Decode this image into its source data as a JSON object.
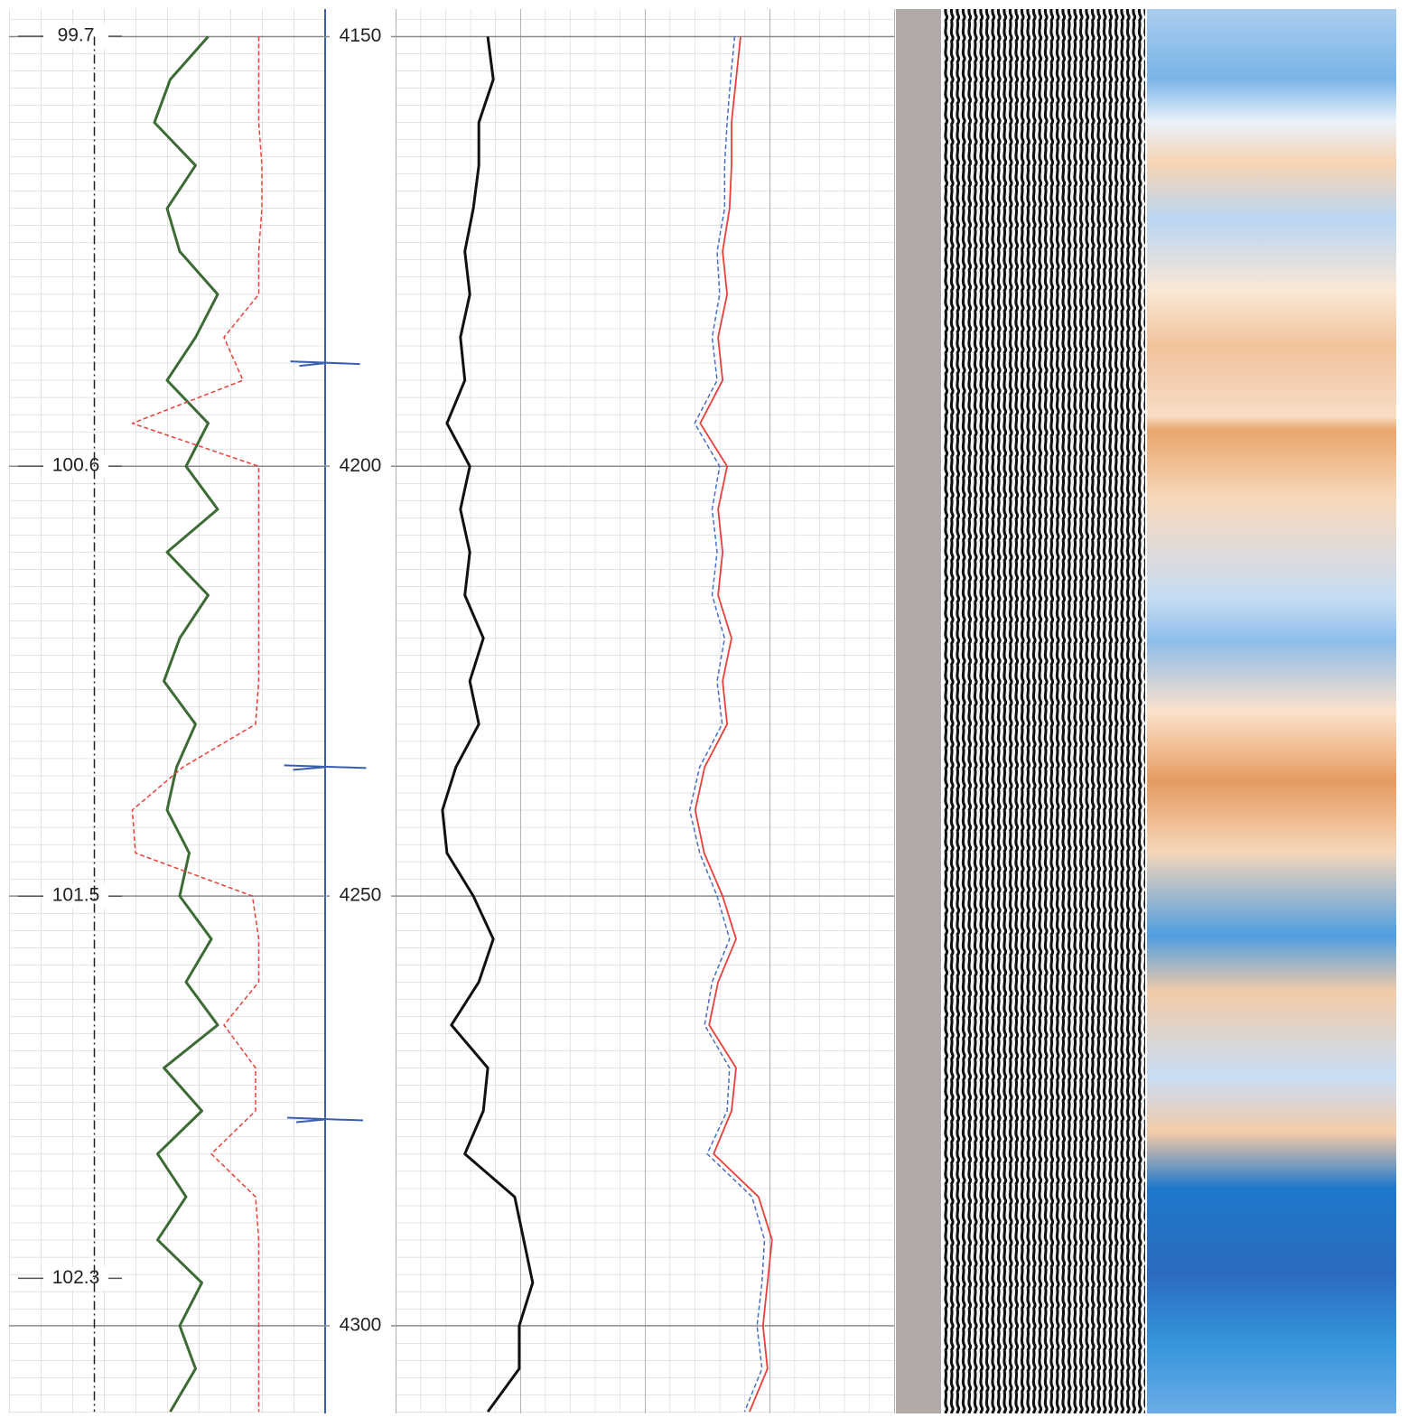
{
  "chart_data": {
    "type": "well-log",
    "ylim": [
      4146.8,
      4310.2
    ],
    "yticks": [
      4150,
      4200,
      4250,
      4300
    ],
    "y2lim": [
      99.643,
      102.583
    ],
    "y2ticks": [
      99.7,
      100.6,
      101.5,
      102.3
    ],
    "xlim": [
      0,
      100
    ],
    "grid": true,
    "depth": [
      4150,
      4155,
      4160,
      4165,
      4170,
      4175,
      4180,
      4185,
      4190,
      4195,
      4200,
      4205,
      4210,
      4215,
      4220,
      4225,
      4230,
      4235,
      4240,
      4245,
      4250,
      4255,
      4260,
      4265,
      4270,
      4275,
      4280,
      4285,
      4290,
      4295,
      4300,
      4305,
      4310
    ],
    "series": [
      {
        "track": 1,
        "color": "#3d6b35",
        "dash": "solid",
        "width": 3,
        "values": [
          63,
          51,
          46,
          59,
          50,
          54,
          66,
          59,
          50,
          63,
          56,
          66,
          50,
          63,
          54,
          49,
          59,
          53,
          50,
          57,
          54,
          64,
          56,
          66,
          49,
          61,
          47,
          56,
          47,
          61,
          54,
          59,
          51
        ]
      },
      {
        "track": 1,
        "color": "#e8403a",
        "dash": "dashed",
        "width": 1.5,
        "values": [
          79,
          79,
          79,
          80,
          80,
          79,
          79,
          68,
          74,
          39,
          79,
          79,
          79,
          79,
          79,
          79,
          78,
          55,
          39,
          40,
          77,
          79,
          79,
          68,
          78,
          78,
          64,
          78,
          79,
          79,
          79,
          79,
          79
        ]
      },
      {
        "track": 1,
        "color": "#222222",
        "dash": "dashdot",
        "width": 1.5,
        "values": [
          27,
          27,
          27,
          27,
          27,
          27,
          27,
          27,
          27,
          27,
          27,
          27,
          27,
          27,
          27,
          27,
          27,
          27,
          27,
          27,
          27,
          27,
          27,
          27,
          27,
          27,
          27,
          27,
          27,
          27,
          27,
          27,
          27
        ]
      },
      {
        "track": 2,
        "color": "#111111",
        "dash": "solid",
        "width": 3,
        "values": [
          18.5,
          19.6,
          16.7,
          16.7,
          15.6,
          13.9,
          14.9,
          13.0,
          13.9,
          10.3,
          14.9,
          13.0,
          14.9,
          13.9,
          17.6,
          14.9,
          16.7,
          12.1,
          9.4,
          10.3,
          15.6,
          19.6,
          16.7,
          11.2,
          18.5,
          17.6,
          13.9,
          23.9,
          25.7,
          27.5,
          24.8,
          24.8,
          18.5
        ]
      },
      {
        "track": 2,
        "color": "#e8403a",
        "dash": "solid",
        "width": 1.8,
        "values": [
          69.2,
          68.3,
          67.4,
          67.4,
          67.0,
          65.6,
          66.5,
          64.7,
          65.6,
          61.1,
          66.5,
          64.7,
          65.6,
          64.7,
          67.4,
          65.6,
          66.5,
          62.0,
          60.1,
          61.9,
          65.6,
          68.3,
          64.7,
          62.9,
          68.3,
          67.4,
          63.8,
          72.8,
          75.5,
          74.6,
          73.7,
          74.6,
          71.0
        ]
      },
      {
        "track": 2,
        "color": "#4a6fc0",
        "dash": "dashed",
        "width": 1.5,
        "values": [
          68.0,
          67.2,
          66.5,
          66.0,
          66.0,
          64.5,
          65.0,
          63.5,
          64.5,
          60.0,
          65.0,
          63.5,
          64.5,
          63.5,
          66.0,
          64.5,
          65.5,
          61.0,
          59.0,
          61.0,
          64.5,
          67.0,
          63.5,
          62.0,
          67.0,
          66.5,
          62.5,
          71.5,
          74.0,
          73.5,
          72.5,
          73.5,
          70.0
        ]
      }
    ],
    "spikes": {
      "color": "#3a5fb0",
      "depth": [
        4188,
        4235,
        4276
      ],
      "values": [
        111,
        113,
        112
      ]
    }
  }
}
